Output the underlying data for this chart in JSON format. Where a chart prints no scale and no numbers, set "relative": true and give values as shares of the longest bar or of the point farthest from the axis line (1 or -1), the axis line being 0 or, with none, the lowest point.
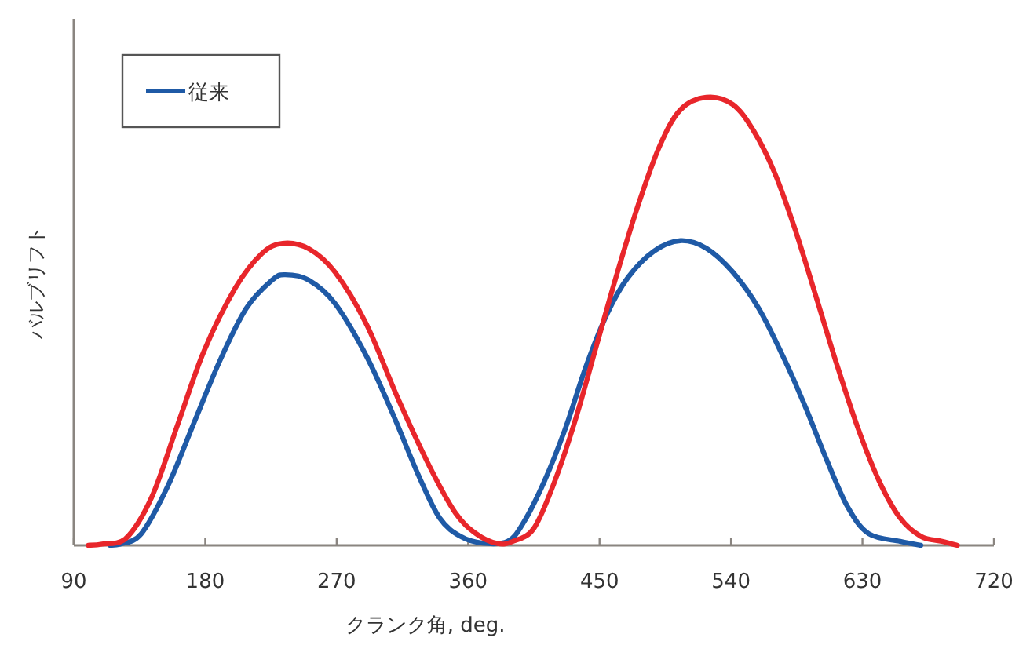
{
  "chart_data": {
    "type": "line",
    "relative": true,
    "xlabel": "クランク角, deg.",
    "ylabel": "バルブリフト",
    "xlim": [
      90,
      720
    ],
    "xticks": [
      90,
      180,
      270,
      360,
      450,
      540,
      630,
      720
    ],
    "grid": false,
    "legend": "top left",
    "line_style": "solid",
    "series": [
      {
        "name": "従来",
        "color": "#1f5aa6",
        "x": [
          115,
          121.9,
          136.2,
          154.2,
          172,
          190,
          207.9,
          225.8,
          234.8,
          250.9,
          268.8,
          290.3,
          308.2,
          326.2,
          340.5,
          354.8,
          370,
          387.1,
          397.8,
          412.2,
          426.5,
          440.8,
          455.2,
          469.5,
          487.4,
          505.3,
          523.2,
          541.2,
          559.1,
          577,
          591.3,
          605.6,
          620,
          634.3,
          655.8,
          670
        ],
        "values": [
          0,
          0.003,
          0.026,
          0.131,
          0.271,
          0.412,
          0.528,
          0.592,
          0.604,
          0.592,
          0.54,
          0.423,
          0.295,
          0.155,
          0.061,
          0.02,
          0.005,
          0.009,
          0.05,
          0.143,
          0.26,
          0.4,
          0.517,
          0.598,
          0.657,
          0.68,
          0.663,
          0.61,
          0.528,
          0.412,
          0.306,
          0.19,
          0.085,
          0.026,
          0.009,
          0
        ]
      },
      {
        "color": "#e8262b",
        "x": [
          100,
          109.4,
          125.5,
          143.4,
          161.3,
          179.2,
          200.7,
          218.7,
          233,
          250.9,
          268.8,
          290.3,
          311.8,
          333.3,
          351.2,
          365.5,
          380,
          390.7,
          405,
          419.3,
          433.7,
          448,
          462.3,
          476.7,
          491,
          505.3,
          523.2,
          541.2,
          555.5,
          569.8,
          584.1,
          598.5,
          612.8,
          627.1,
          641.5,
          655.8,
          670.1,
          684.5,
          695
        ],
        "values": [
          0,
          0.003,
          0.015,
          0.108,
          0.271,
          0.434,
          0.575,
          0.651,
          0.674,
          0.662,
          0.61,
          0.494,
          0.329,
          0.178,
          0.073,
          0.026,
          0.004,
          0.009,
          0.038,
          0.143,
          0.283,
          0.447,
          0.61,
          0.762,
          0.89,
          0.972,
          1,
          0.984,
          0.925,
          0.832,
          0.703,
          0.552,
          0.4,
          0.26,
          0.143,
          0.061,
          0.02,
          0.009,
          0
        ]
      }
    ]
  }
}
